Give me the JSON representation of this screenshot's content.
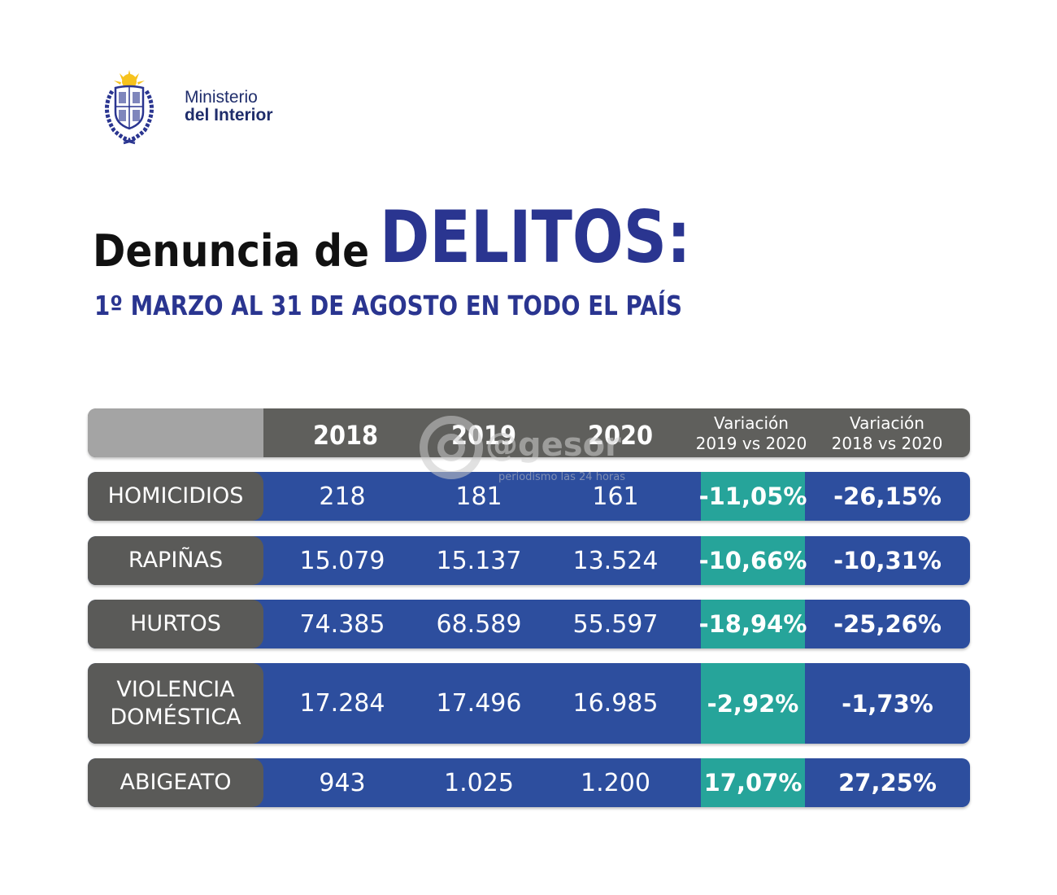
{
  "header": {
    "ministry_line1": "Ministerio",
    "ministry_line2": "del Interior"
  },
  "title": {
    "part1": "Denuncia de",
    "part2": "DELITOS:",
    "subtitle": "1º MARZO AL 31 DE AGOSTO EN TODO EL PAÍS"
  },
  "watermark": {
    "name": "@gesor",
    "tagline": "periodismo las 24 horas"
  },
  "colors": {
    "navy": "#2a3590",
    "row_blue": "#2d4e9e",
    "teal": "#26a49a",
    "gray": "#5a5a58"
  },
  "chart_data": {
    "type": "table",
    "columns": [
      "2018",
      "2019",
      "2020",
      "Variación 2019 vs 2020",
      "Variación 2018 vs 2020"
    ],
    "column_headers": {
      "y2018": "2018",
      "y2019": "2019",
      "y2020": "2020",
      "var1_line1": "Variación",
      "var1_line2": "2019 vs 2020",
      "var2_line1": "Variación",
      "var2_line2": "2018 vs 2020"
    },
    "rows": [
      {
        "category": "HOMICIDIOS",
        "category_lines": [
          "HOMICIDIOS"
        ],
        "y2018": "218",
        "y2019": "181",
        "y2020": "161",
        "var_19_20": "-11,05%",
        "var_18_20": "-26,15%"
      },
      {
        "category": "RAPIÑAS",
        "category_lines": [
          "RAPIÑAS"
        ],
        "y2018": "15.079",
        "y2019": "15.137",
        "y2020": "13.524",
        "var_19_20": "-10,66%",
        "var_18_20": "-10,31%"
      },
      {
        "category": "HURTOS",
        "category_lines": [
          "HURTOS"
        ],
        "y2018": "74.385",
        "y2019": "68.589",
        "y2020": "55.597",
        "var_19_20": "-18,94%",
        "var_18_20": "-25,26%"
      },
      {
        "category": "VIOLENCIA DOMÉSTICA",
        "category_lines": [
          "VIOLENCIA",
          "DOMÉSTICA"
        ],
        "y2018": "17.284",
        "y2019": "17.496",
        "y2020": "16.985",
        "var_19_20": "-2,92%",
        "var_18_20": "-1,73%"
      },
      {
        "category": "ABIGEATO",
        "category_lines": [
          "ABIGEATO"
        ],
        "y2018": "943",
        "y2019": "1.025",
        "y2020": "1.200",
        "var_19_20": "17,07%",
        "var_18_20": "27,25%"
      }
    ]
  }
}
